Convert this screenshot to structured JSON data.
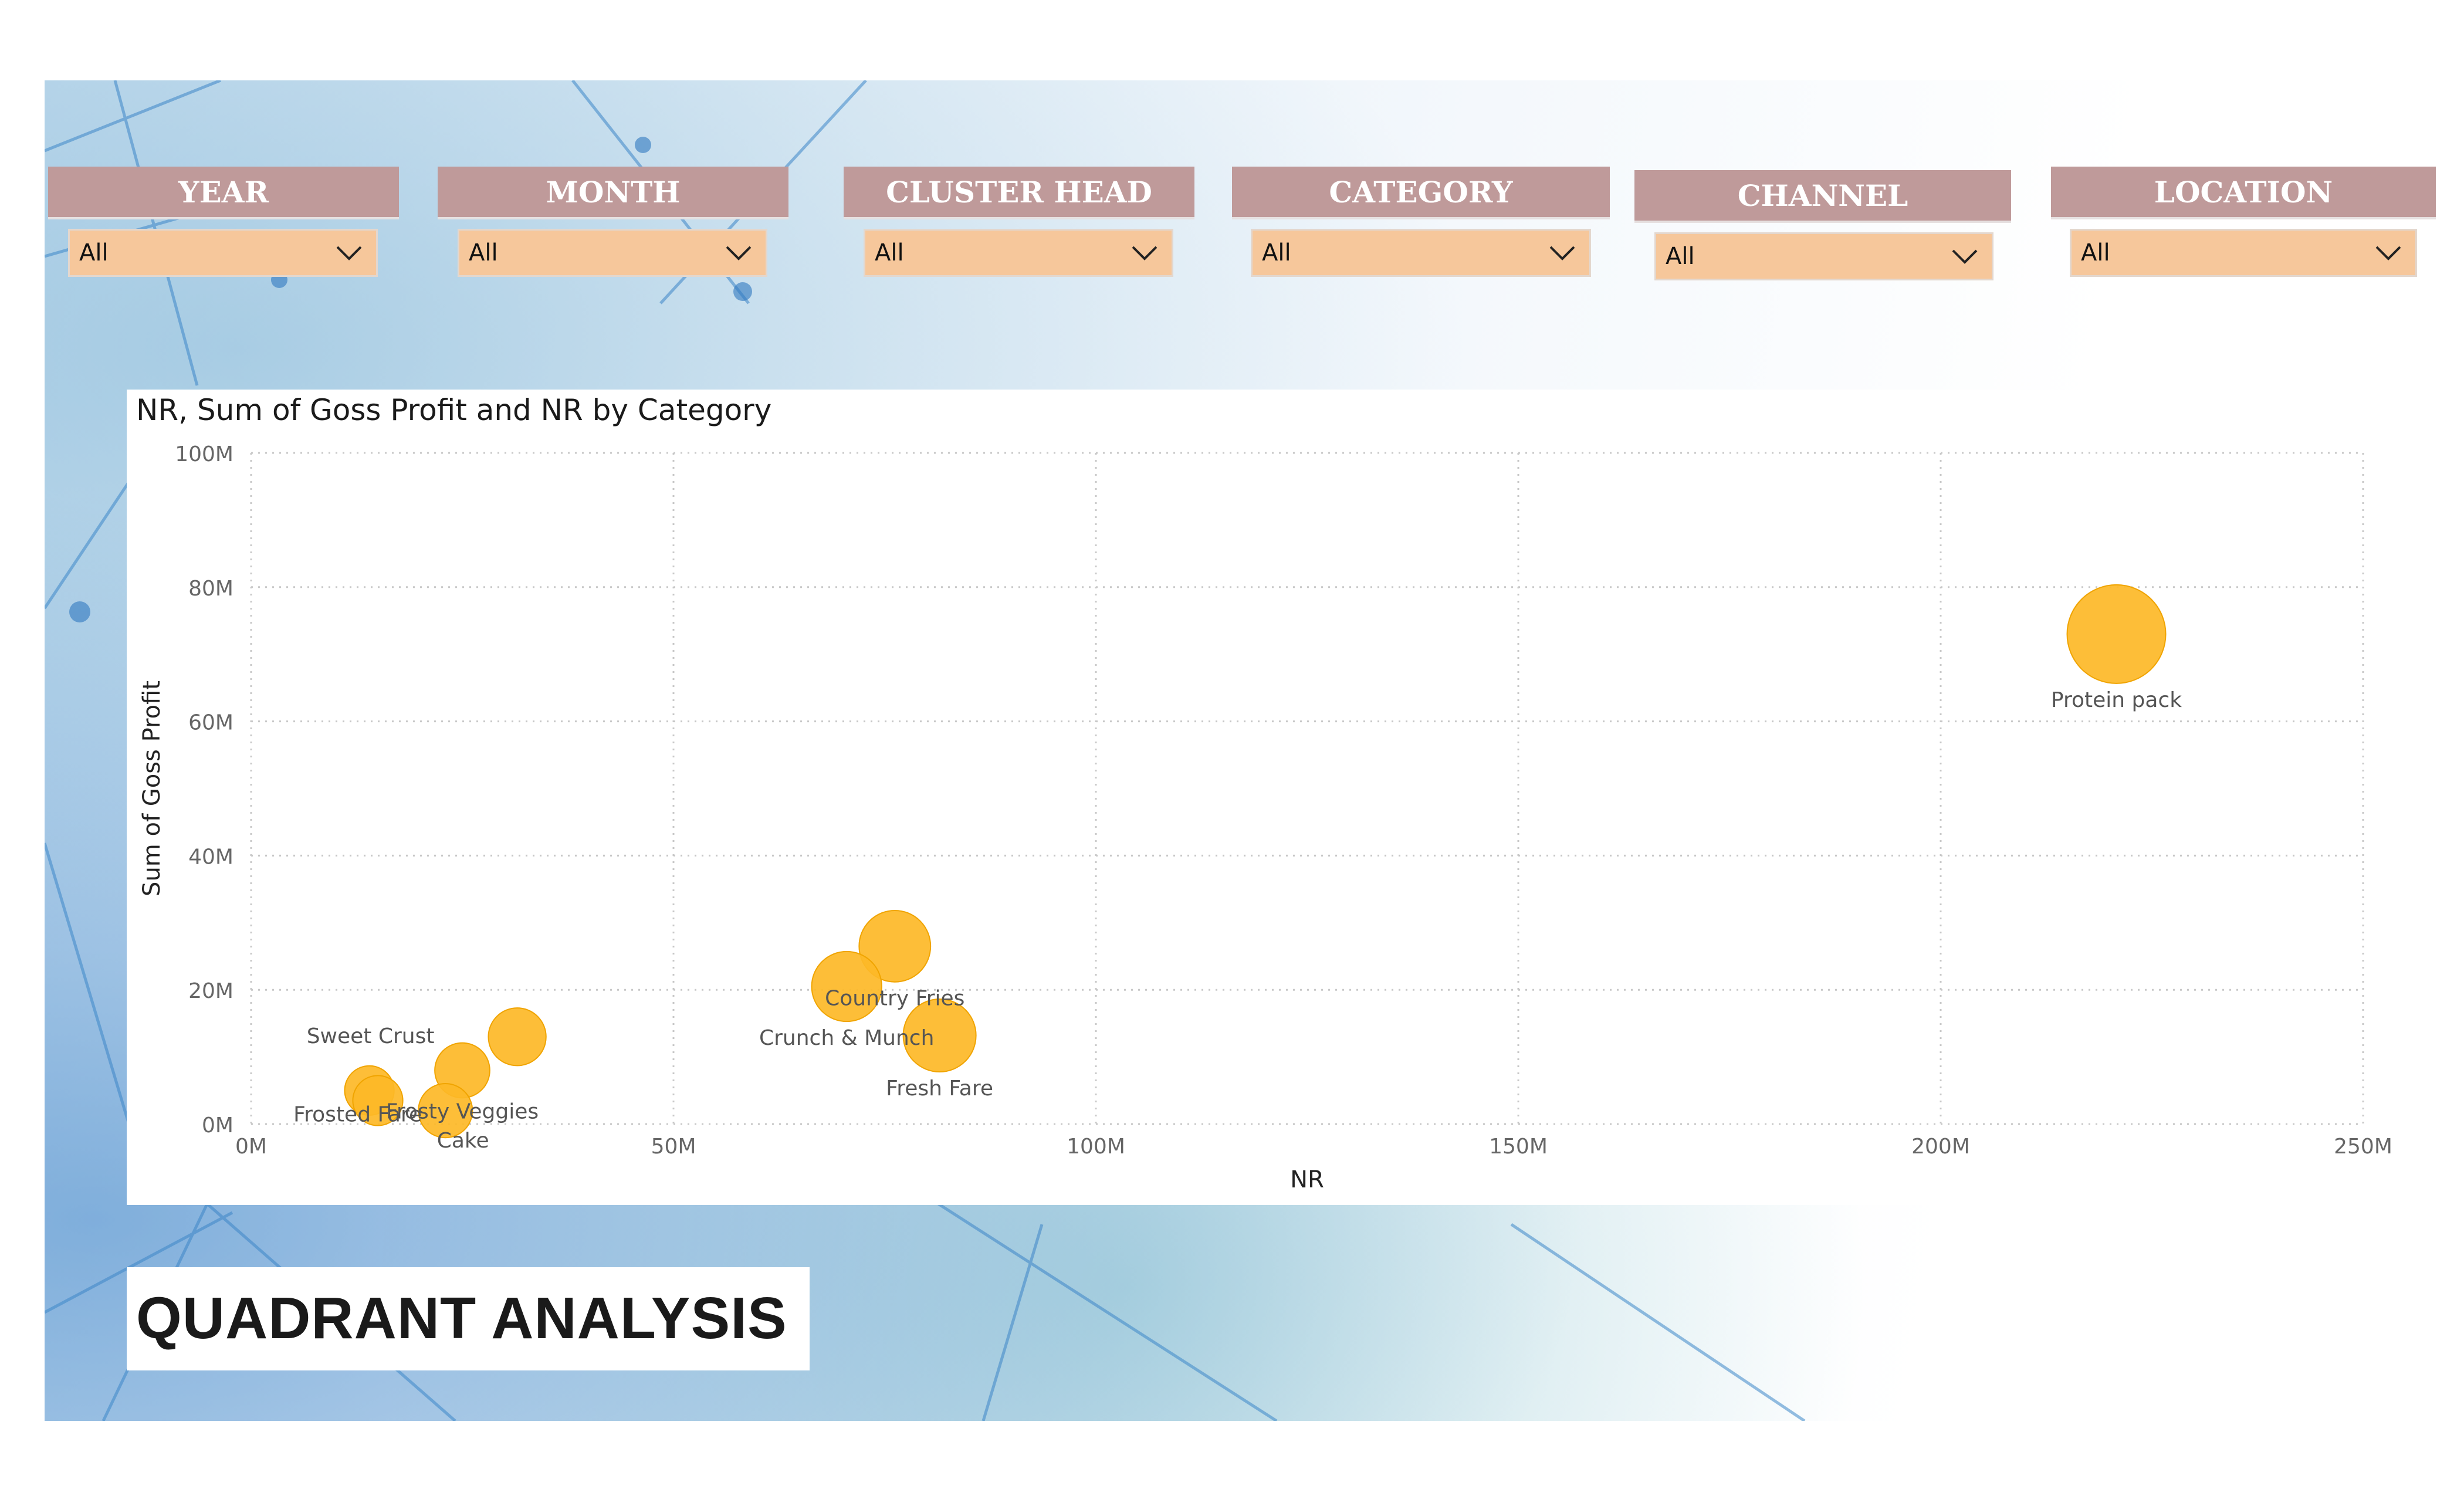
{
  "filters": [
    {
      "label": "YEAR",
      "value": "All"
    },
    {
      "label": "MONTH",
      "value": "All"
    },
    {
      "label": "CLUSTER HEAD",
      "value": "All"
    },
    {
      "label": "CATEGORY",
      "value": "All"
    },
    {
      "label": "CHANNEL",
      "value": "All"
    },
    {
      "label": "LOCATION",
      "value": "All"
    }
  ],
  "page_title": "QUADRANT ANALYSIS",
  "colors": {
    "bubble": "#fdb827",
    "filter_header": "#bf9a9a",
    "filter_select": "#f6c79b"
  },
  "chart_data": {
    "type": "scatter",
    "title": "NR, Sum of Goss Profit and NR by Category",
    "xlabel": "NR",
    "ylabel": "Sum of Goss Profit",
    "xlim": [
      0,
      250
    ],
    "ylim": [
      0,
      100
    ],
    "x_ticks": [
      "0M",
      "50M",
      "100M",
      "150M",
      "200M",
      "250M"
    ],
    "y_ticks": [
      "0M",
      "20M",
      "40M",
      "60M",
      "80M",
      "100M"
    ],
    "grid": true,
    "size_by": "NR",
    "points": [
      {
        "label": "Protein pack",
        "x": 220.8,
        "y": 73.0
      },
      {
        "label": "Country Fries",
        "x": 76.2,
        "y": 26.5
      },
      {
        "label": "Crunch & Munch",
        "x": 70.5,
        "y": 20.5
      },
      {
        "label": "Fresh Fare",
        "x": 81.5,
        "y": 13.2
      },
      {
        "label": "Sweet Crust",
        "x": 31.5,
        "y": 13.0
      },
      {
        "label": "Frosty Veggies",
        "x": 25.0,
        "y": 8.0
      },
      {
        "label": "Frosted Fare",
        "x": 14.0,
        "y": 5.0
      },
      {
        "label": "Cake",
        "x": 23.0,
        "y": 2.0
      }
    ],
    "extra_points": [
      {
        "x": 15.0,
        "y": 3.5
      }
    ]
  }
}
